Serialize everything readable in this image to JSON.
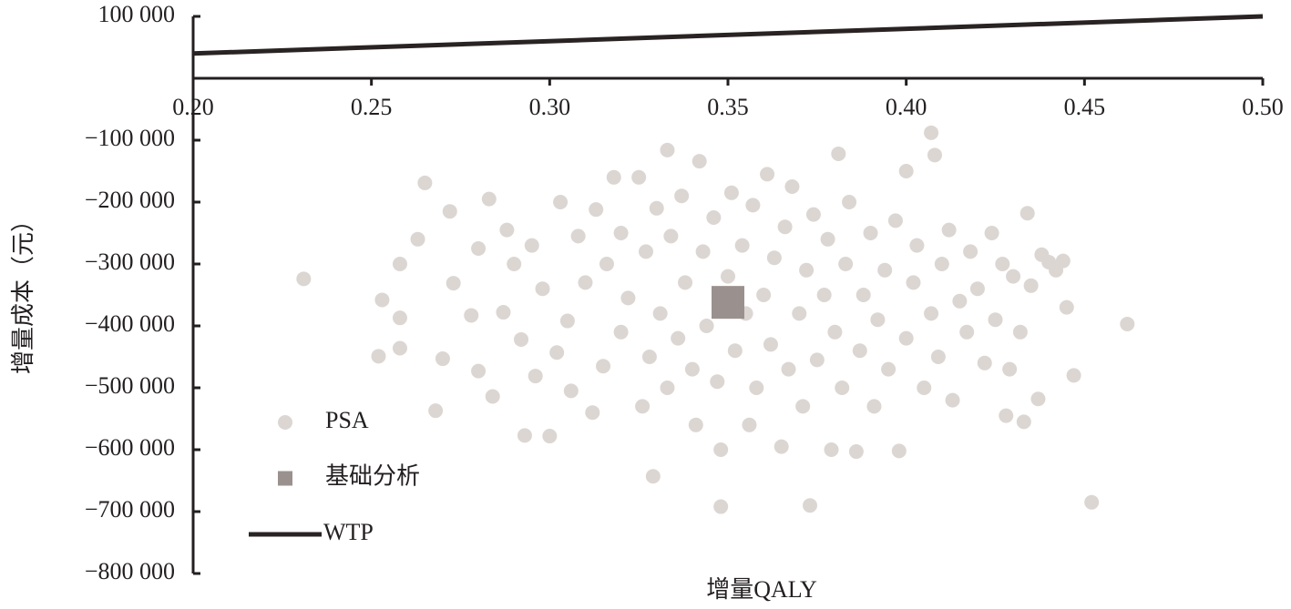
{
  "chart_data": {
    "type": "scatter",
    "x_label": "增量QALY",
    "y_label": "增量成本（元）",
    "xlim": [
      0.2,
      0.5
    ],
    "xticks": [
      {
        "value": 0.2,
        "label": "0.20"
      },
      {
        "value": 0.25,
        "label": "0.25"
      },
      {
        "value": 0.3,
        "label": "0.30"
      },
      {
        "value": 0.35,
        "label": "0.35"
      },
      {
        "value": 0.4,
        "label": "0.40"
      },
      {
        "value": 0.45,
        "label": "0.45"
      },
      {
        "value": 0.5,
        "label": "0.50"
      }
    ],
    "ylim": [
      -800000,
      100000
    ],
    "yticks": [
      {
        "value": 100000,
        "label": "100 000"
      },
      {
        "value": -100000,
        "label": "−100 000"
      },
      {
        "value": -200000,
        "label": "−200 000"
      },
      {
        "value": -300000,
        "label": "−300 000"
      },
      {
        "value": -400000,
        "label": "−400 000"
      },
      {
        "value": -500000,
        "label": "−500 000"
      },
      {
        "value": -600000,
        "label": "−600 000"
      },
      {
        "value": -700000,
        "label": "−700 000"
      },
      {
        "value": -800000,
        "label": "−800 000"
      }
    ],
    "legend": "lower left",
    "series": [
      {
        "name": "PSA",
        "style": "circle",
        "color": "#dcd6d3",
        "x": [
          0.231,
          0.265,
          0.407,
          0.462,
          0.452,
          0.348,
          0.373,
          0.329,
          0.333,
          0.381,
          0.342,
          0.252,
          0.258,
          0.253,
          0.258,
          0.258,
          0.263,
          0.268,
          0.27,
          0.272,
          0.273,
          0.278,
          0.28,
          0.28,
          0.283,
          0.284,
          0.287,
          0.288,
          0.29,
          0.292,
          0.293,
          0.295,
          0.296,
          0.298,
          0.3,
          0.302,
          0.303,
          0.305,
          0.306,
          0.308,
          0.31,
          0.312,
          0.313,
          0.315,
          0.316,
          0.318,
          0.32,
          0.32,
          0.322,
          0.325,
          0.326,
          0.327,
          0.328,
          0.33,
          0.331,
          0.333,
          0.334,
          0.336,
          0.337,
          0.338,
          0.34,
          0.341,
          0.343,
          0.344,
          0.346,
          0.347,
          0.348,
          0.35,
          0.351,
          0.352,
          0.354,
          0.355,
          0.356,
          0.357,
          0.358,
          0.36,
          0.361,
          0.362,
          0.363,
          0.365,
          0.366,
          0.367,
          0.368,
          0.37,
          0.371,
          0.372,
          0.374,
          0.375,
          0.377,
          0.378,
          0.379,
          0.38,
          0.382,
          0.383,
          0.384,
          0.386,
          0.387,
          0.388,
          0.39,
          0.391,
          0.392,
          0.394,
          0.395,
          0.397,
          0.398,
          0.4,
          0.4,
          0.402,
          0.403,
          0.405,
          0.407,
          0.408,
          0.409,
          0.41,
          0.412,
          0.413,
          0.415,
          0.417,
          0.418,
          0.42,
          0.422,
          0.424,
          0.425,
          0.427,
          0.428,
          0.429,
          0.43,
          0.432,
          0.433,
          0.434,
          0.435,
          0.437,
          0.438,
          0.44,
          0.442,
          0.444,
          0.445,
          0.447
        ],
        "values": [
          -324000,
          -169000,
          -88000,
          -397000,
          -685000,
          -692000,
          -690000,
          -643000,
          -116000,
          -122000,
          -134000,
          -449000,
          -436000,
          -358000,
          -387000,
          -300000,
          -260000,
          -537000,
          -453000,
          -215000,
          -331000,
          -383000,
          -473000,
          -275000,
          -195000,
          -514000,
          -378000,
          -245000,
          -300000,
          -422000,
          -577000,
          -270000,
          -481000,
          -340000,
          -578000,
          -443000,
          -200000,
          -392000,
          -505000,
          -255000,
          -330000,
          -540000,
          -212000,
          -465000,
          -300000,
          -160000,
          -410000,
          -250000,
          -355000,
          -160000,
          -530000,
          -280000,
          -450000,
          -210000,
          -380000,
          -500000,
          -255000,
          -420000,
          -190000,
          -330000,
          -470000,
          -560000,
          -280000,
          -400000,
          -225000,
          -490000,
          -600000,
          -320000,
          -185000,
          -440000,
          -270000,
          -380000,
          -560000,
          -205000,
          -500000,
          -350000,
          -155000,
          -430000,
          -290000,
          -595000,
          -240000,
          -470000,
          -175000,
          -380000,
          -530000,
          -310000,
          -220000,
          -455000,
          -350000,
          -260000,
          -600000,
          -410000,
          -500000,
          -300000,
          -200000,
          -603000,
          -440000,
          -350000,
          -250000,
          -530000,
          -390000,
          -310000,
          -470000,
          -230000,
          -602000,
          -150000,
          -420000,
          -330000,
          -270000,
          -500000,
          -380000,
          -124000,
          -450000,
          -300000,
          -245000,
          -520000,
          -360000,
          -410000,
          -280000,
          -340000,
          -460000,
          -250000,
          -390000,
          -300000,
          -545000,
          -470000,
          -320000,
          -410000,
          -555000,
          -218000,
          -335000,
          -518000,
          -285000,
          -297000,
          -310000,
          -295000,
          -370000,
          -480000
        ]
      },
      {
        "name": "基础分析",
        "style": "square",
        "color": "#9a918f",
        "x": [
          0.35
        ],
        "values": [
          -362000
        ]
      },
      {
        "name": "WTP",
        "style": "line",
        "color": "#2a2323",
        "x": [
          0.2,
          0.5
        ],
        "values": [
          40000,
          100000
        ]
      }
    ]
  }
}
